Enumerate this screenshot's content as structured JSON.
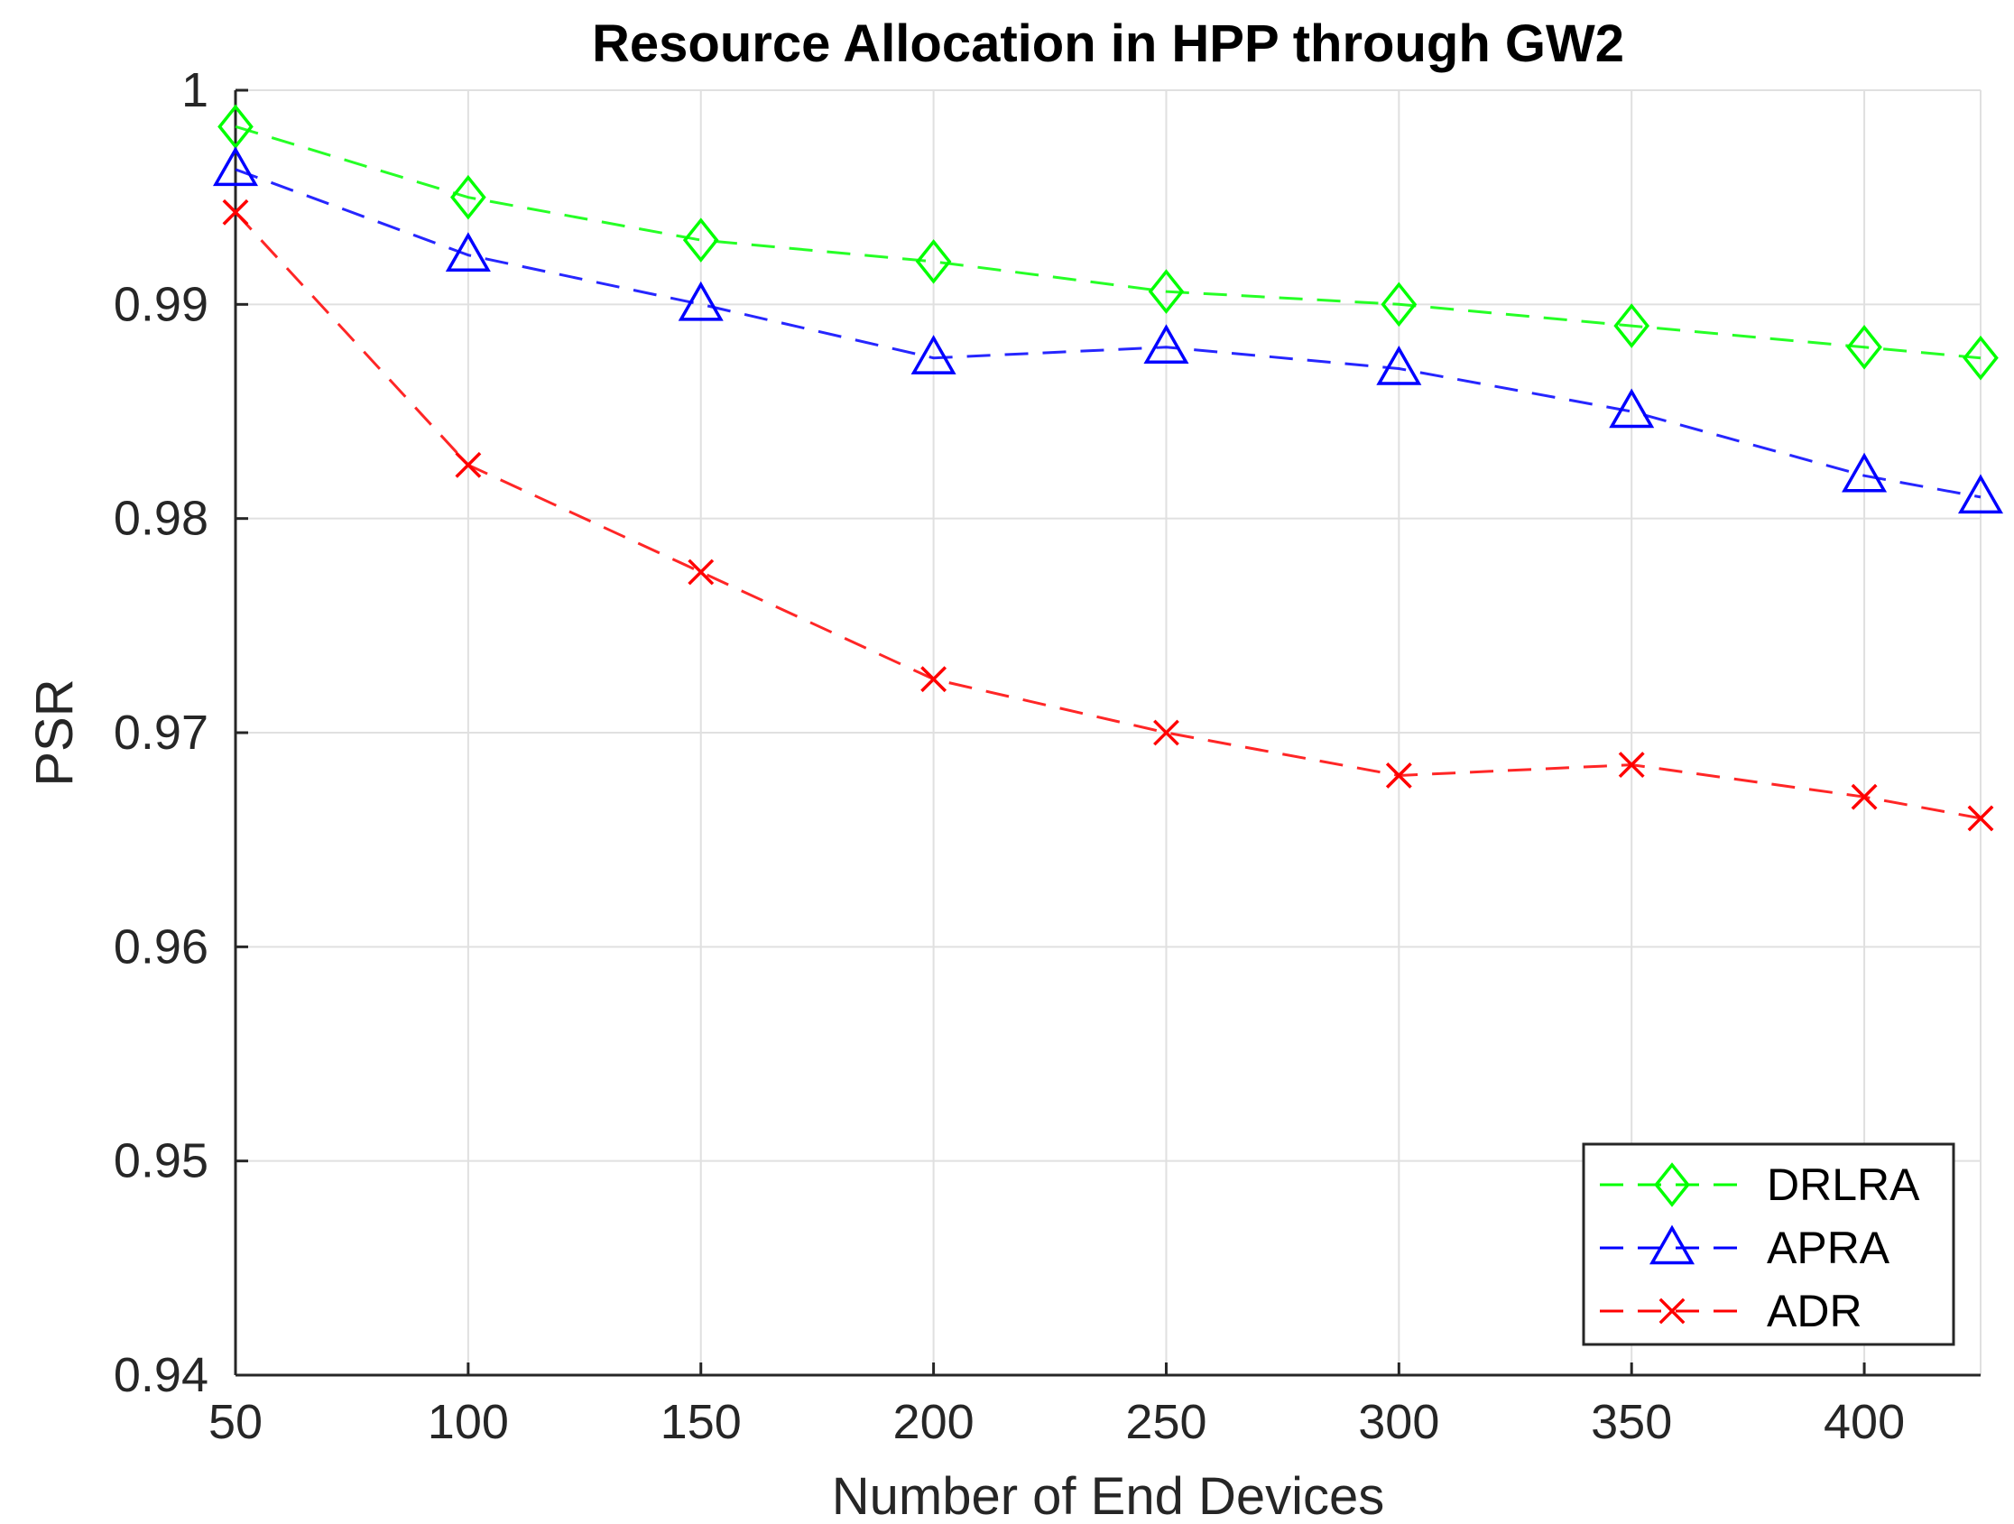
{
  "chart_data": {
    "type": "line",
    "title": "Resource Allocation in HPP through GW2",
    "xlabel": "Number of End Devices",
    "ylabel": "PSR",
    "xlim": [
      50,
      425
    ],
    "ylim": [
      0.94,
      1.0
    ],
    "xticks": [
      50,
      100,
      150,
      200,
      250,
      300,
      350,
      400
    ],
    "xtick_labels": [
      "50",
      "100",
      "150",
      "200",
      "250",
      "300",
      "350",
      "400"
    ],
    "yticks": [
      0.94,
      0.95,
      0.96,
      0.97,
      0.98,
      0.99,
      1.0
    ],
    "ytick_labels": [
      "0.94",
      "0.95",
      "0.96",
      "0.97",
      "0.98",
      "0.99",
      "1"
    ],
    "grid": true,
    "legend_position": "bottom-right",
    "x": [
      50,
      100,
      150,
      200,
      250,
      300,
      350,
      400,
      425
    ],
    "series": [
      {
        "name": "DRLRA",
        "color": "#00ff00",
        "marker": "diamond",
        "line_style": "dashed",
        "values": [
          0.9983,
          0.995,
          0.993,
          0.992,
          0.9906,
          0.99,
          0.989,
          0.988,
          0.9875
        ]
      },
      {
        "name": "APRA",
        "color": "#0000ff",
        "marker": "triangle",
        "line_style": "dashed",
        "values": [
          0.9963,
          0.9923,
          0.99,
          0.9875,
          0.988,
          0.987,
          0.985,
          0.982,
          0.981
        ]
      },
      {
        "name": "ADR",
        "color": "#ff0000",
        "marker": "x",
        "line_style": "dashed",
        "values": [
          0.9943,
          0.9825,
          0.9775,
          0.9725,
          0.97,
          0.968,
          0.9685,
          0.967,
          0.966
        ]
      }
    ]
  }
}
